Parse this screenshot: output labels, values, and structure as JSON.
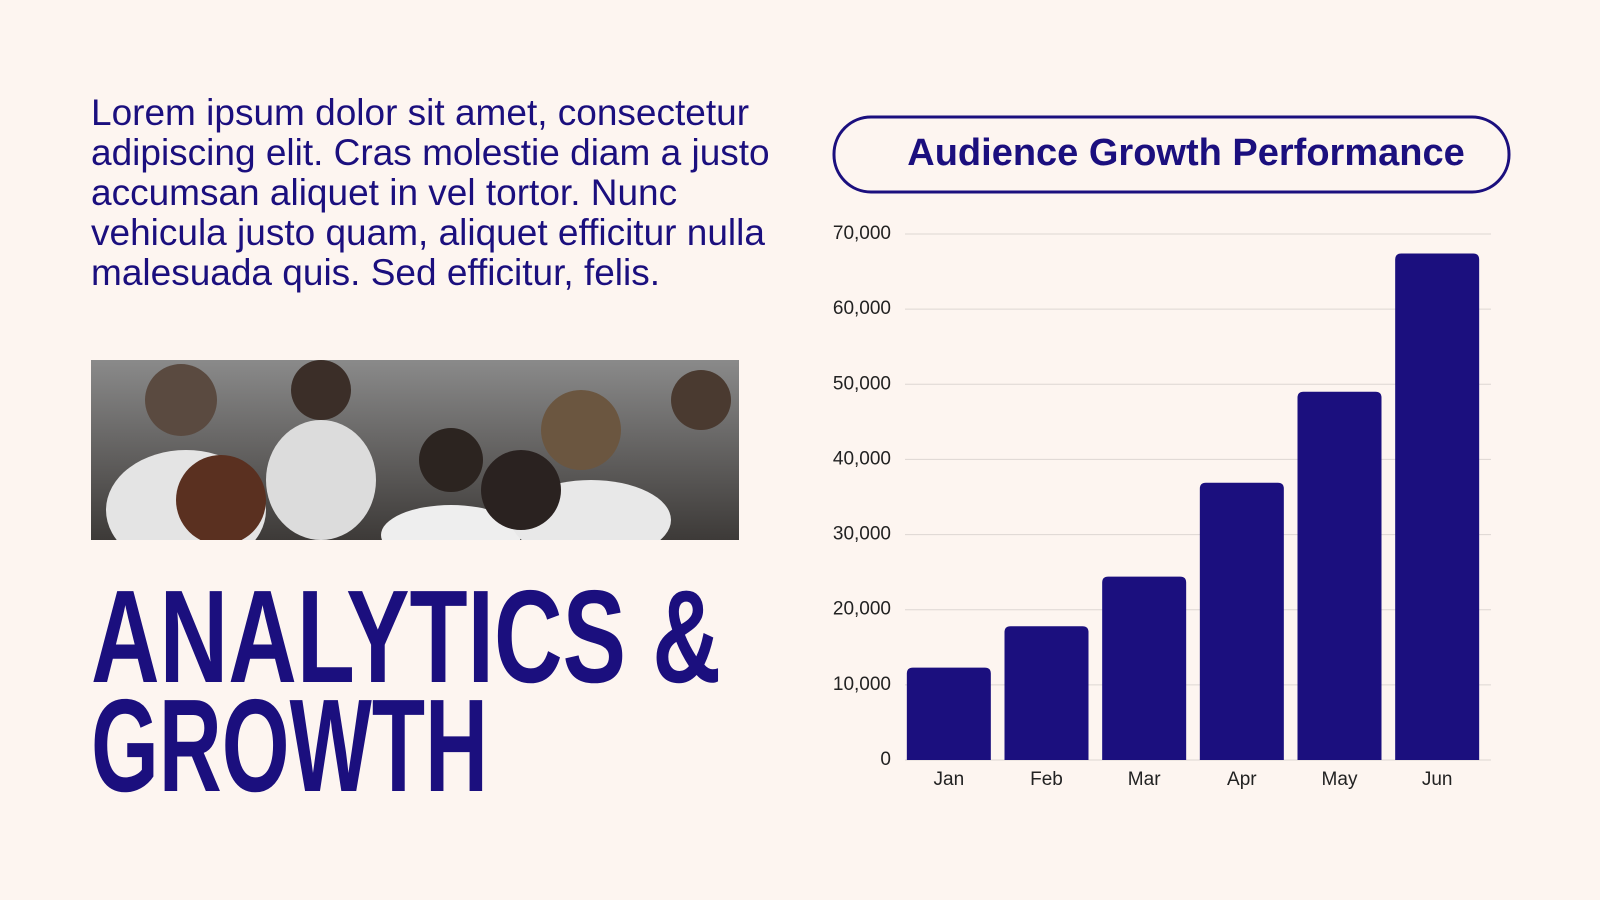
{
  "paragraph": "Lorem ipsum dolor sit amet, consectetur adipiscing elit. Cras molestie diam a justo accumsan aliquet in vel tortor. Nunc vehicula justo quam, aliquet efficitur nulla malesuada quis. Sed efficitur, felis.",
  "heading": {
    "lines": [
      "ANALYTICS &",
      "GROWTH"
    ]
  },
  "chart_data": {
    "type": "bar",
    "title": "Audience Growth Performance",
    "categories": [
      "Jan",
      "Feb",
      "Mar",
      "Apr",
      "May",
      "Jun"
    ],
    "values": [
      12300,
      17800,
      24400,
      36900,
      49000,
      67400
    ],
    "color": "#1b0f7e",
    "ylim": [
      0,
      70000
    ],
    "yticks": [
      0,
      {
        "value": 10000,
        "label": "10,000"
      },
      {
        "value": 20000,
        "label": "20,000"
      },
      {
        "value": 30000,
        "label": "30,000"
      },
      {
        "value": 40000,
        "label": "40,000"
      },
      {
        "value": 50000,
        "label": "50,000"
      },
      {
        "value": 60000,
        "label": "60,000"
      },
      {
        "value": 70000,
        "label": "70,000"
      }
    ],
    "grid": true
  }
}
